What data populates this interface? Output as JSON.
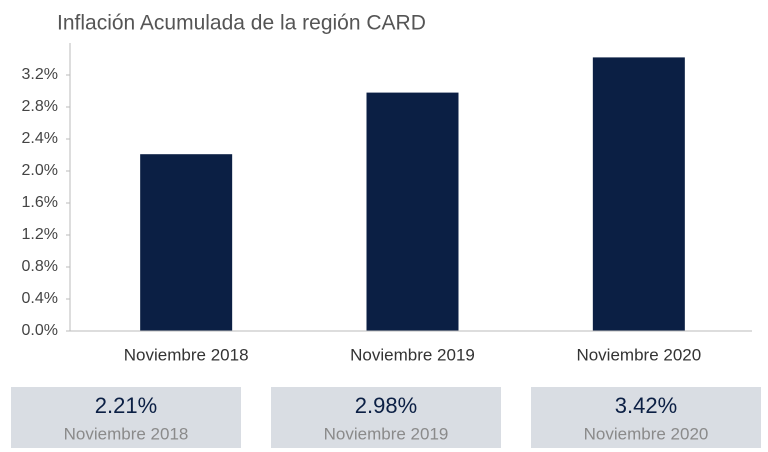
{
  "chart_data": {
    "type": "bar",
    "title": "Inflación Acumulada de la región CARD",
    "categories": [
      "Noviembre 2018",
      "Noviembre 2019",
      "Noviembre 2020"
    ],
    "values": [
      2.21,
      2.98,
      3.42
    ],
    "value_labels": [
      "2.21%",
      "2.98%",
      "3.42%"
    ],
    "color": "#0b1f44",
    "ylim": [
      0,
      3.5
    ],
    "yticks": [
      {
        "value": 0,
        "label": "0.0%"
      },
      {
        "value": 0.4,
        "label": "0.4%"
      },
      {
        "value": 0.8,
        "label": "0.8%"
      },
      {
        "value": 1.2,
        "label": "1.2%"
      },
      {
        "value": 1.6,
        "label": "1.6%"
      },
      {
        "value": 2.0,
        "label": "2.0%"
      },
      {
        "value": 2.4,
        "label": "2.4%"
      },
      {
        "value": 2.8,
        "label": "2.8%"
      },
      {
        "value": 3.2,
        "label": "3.2%"
      }
    ],
    "grid": false
  }
}
